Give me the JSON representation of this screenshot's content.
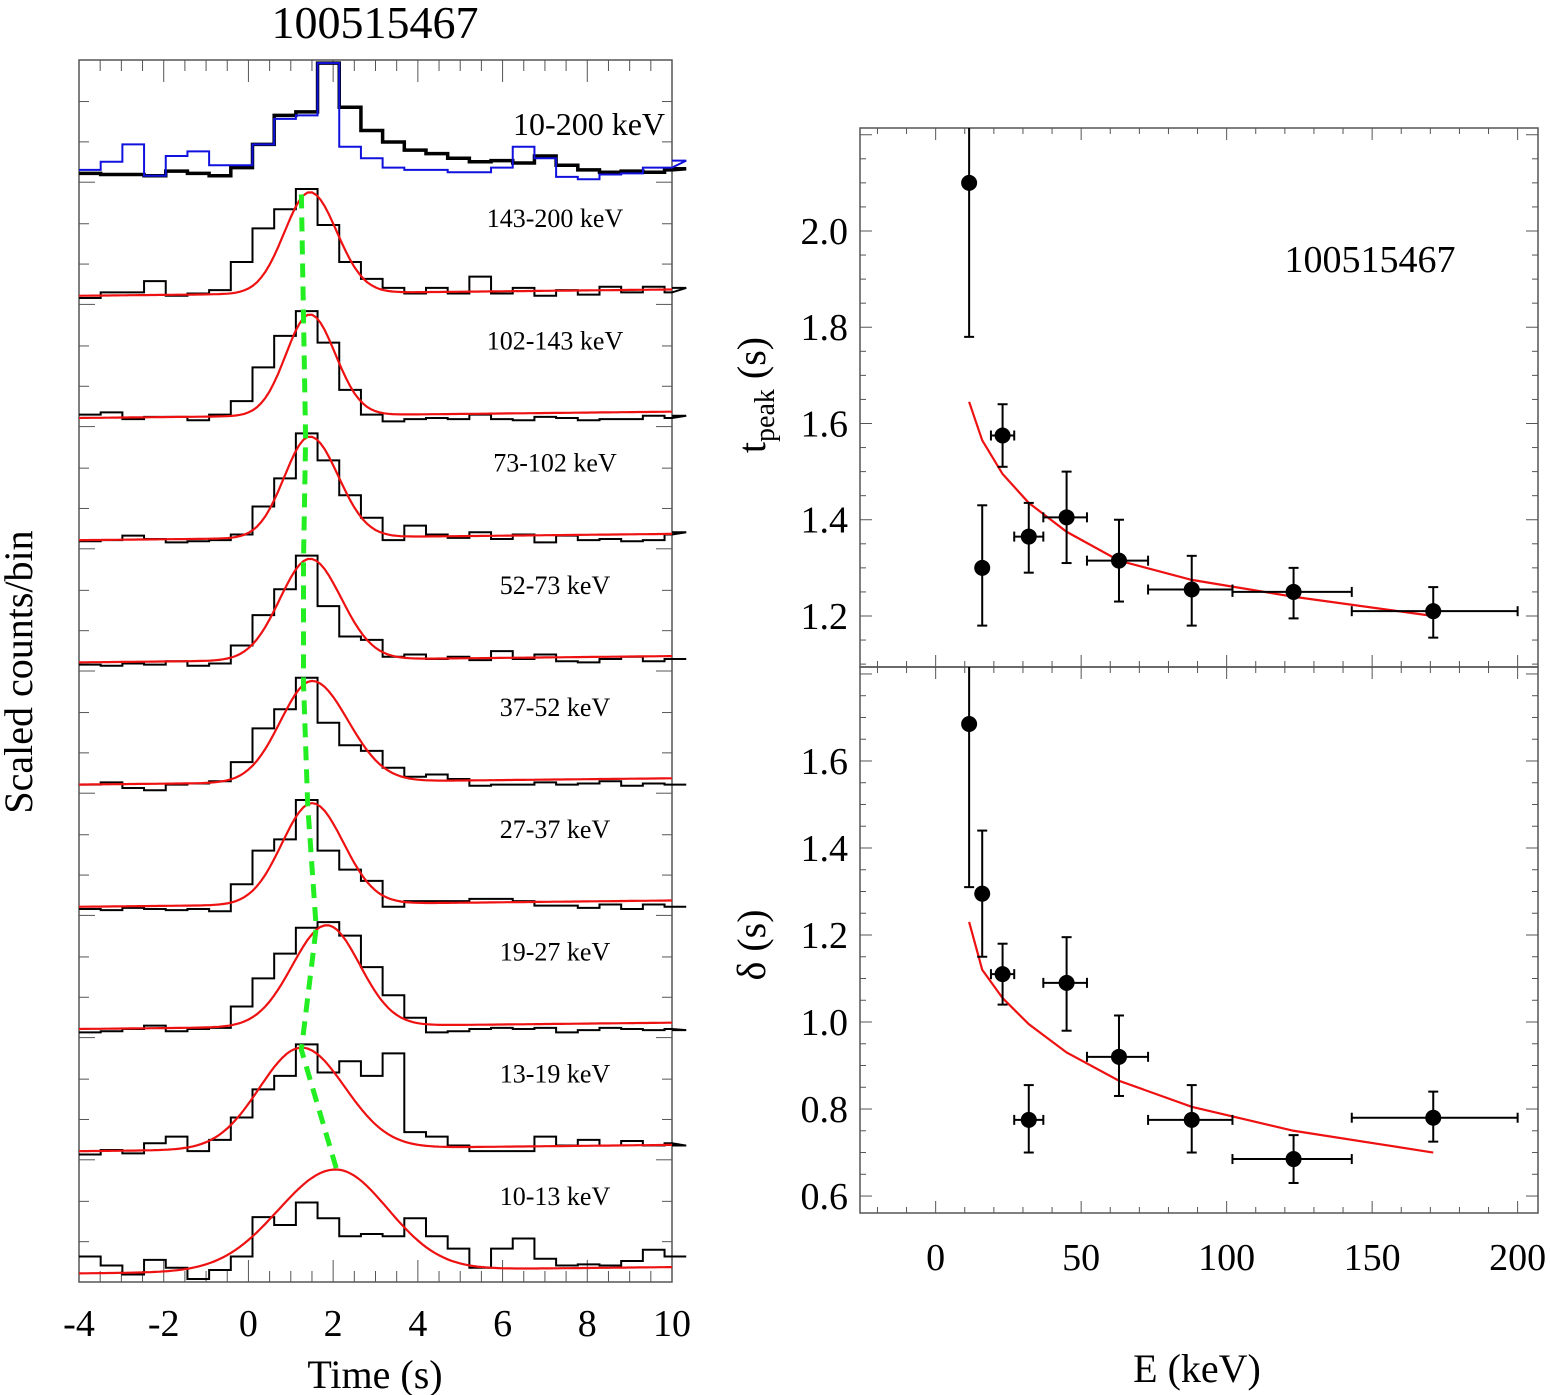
{
  "chart_data": [
    {
      "type": "line",
      "title": "100515467",
      "xlabel": "Time (s)",
      "ylabel": "Scaled counts/bin",
      "xlim": [
        -4,
        10
      ],
      "xticks": [
        "-4",
        "-2",
        "0",
        "2",
        "4",
        "6",
        "8",
        "10"
      ],
      "xtick_values": [
        -4,
        -2,
        0,
        2,
        4,
        6,
        8,
        10
      ],
      "bin_width_s": 0.512,
      "peak_line_color": "#22ee22",
      "fit_color": "#ee1111",
      "panels": [
        {
          "label": "10-200 keV",
          "counts": [
            0.05,
            0.04,
            0.04,
            0.03,
            0.07,
            0.05,
            0.03,
            0.1,
            0.3,
            0.55,
            0.58,
            1.0,
            0.62,
            0.42,
            0.32,
            0.25,
            0.22,
            0.18,
            0.15,
            0.16,
            0.14,
            0.2,
            0.12,
            0.08,
            0.06,
            0.07,
            0.06,
            0.08,
            0.09
          ],
          "overlay_counts": [
            0.08,
            0.15,
            0.3,
            0.03,
            0.2,
            0.24,
            0.12,
            0.12,
            0.3,
            0.52,
            0.55,
            1.0,
            0.28,
            0.18,
            0.1,
            0.08,
            0.08,
            0.06,
            0.06,
            0.1,
            0.28,
            0.18,
            0.02,
            0.0,
            0.04,
            0.05,
            0.1,
            0.1,
            0.16
          ],
          "overlay_color": "#1111dd",
          "fit": null
        },
        {
          "label": "143-200 keV",
          "fit_peak_t": 1.45,
          "fit_rise": 0.85,
          "fit_decay": 0.9,
          "counts": [
            0.03,
            0.08,
            0.08,
            0.18,
            0.05,
            0.07,
            0.1,
            0.35,
            0.65,
            0.82,
            1.0,
            0.68,
            0.35,
            0.2,
            0.12,
            0.07,
            0.12,
            0.07,
            0.22,
            0.07,
            0.12,
            0.05,
            0.1,
            0.06,
            0.13,
            0.08,
            0.13,
            0.08,
            0.12
          ]
        },
        {
          "label": "102-143 keV",
          "fit_peak_t": 1.45,
          "fit_rise": 0.8,
          "fit_decay": 0.85,
          "counts": [
            0.08,
            0.1,
            0.04,
            0.06,
            0.06,
            0.03,
            0.08,
            0.2,
            0.5,
            0.78,
            1.0,
            0.72,
            0.3,
            0.08,
            0.02,
            0.04,
            0.05,
            0.04,
            0.08,
            0.04,
            0.03,
            0.06,
            0.05,
            0.03,
            0.04,
            0.04,
            0.07,
            0.05,
            0.07
          ]
        },
        {
          "label": "73-102 keV",
          "fit_peak_t": 1.45,
          "fit_rise": 0.85,
          "fit_decay": 0.95,
          "counts": [
            0.04,
            0.05,
            0.09,
            0.06,
            0.03,
            0.04,
            0.05,
            0.1,
            0.35,
            0.6,
            1.0,
            0.76,
            0.45,
            0.25,
            0.05,
            0.18,
            0.1,
            0.07,
            0.12,
            0.06,
            0.1,
            0.03,
            0.09,
            0.05,
            0.06,
            0.04,
            0.05,
            0.1,
            0.12
          ]
        },
        {
          "label": "52-73 keV",
          "fit_peak_t": 1.45,
          "fit_rise": 1.0,
          "fit_decay": 1.05,
          "counts": [
            0.03,
            0.02,
            0.04,
            0.03,
            0.06,
            0.02,
            0.04,
            0.2,
            0.47,
            0.7,
            1.0,
            0.55,
            0.28,
            0.25,
            0.1,
            0.12,
            0.08,
            0.1,
            0.07,
            0.15,
            0.08,
            0.12,
            0.06,
            0.05,
            0.08,
            0.1,
            0.06,
            0.08,
            0.08
          ]
        },
        {
          "label": "37-52 keV",
          "fit_peak_t": 1.5,
          "fit_rise": 1.05,
          "fit_decay": 1.2,
          "counts": [
            0.05,
            0.07,
            0.02,
            0.0,
            0.05,
            0.06,
            0.08,
            0.25,
            0.55,
            0.72,
            1.0,
            0.6,
            0.4,
            0.35,
            0.2,
            0.12,
            0.14,
            0.1,
            0.04,
            0.05,
            0.05,
            0.07,
            0.05,
            0.06,
            0.08,
            0.04,
            0.06,
            0.05,
            0.05
          ]
        },
        {
          "label": "27-37 keV",
          "fit_peak_t": 1.5,
          "fit_rise": 1.0,
          "fit_decay": 1.05,
          "counts": [
            0.03,
            0.02,
            0.04,
            0.03,
            0.02,
            0.03,
            0.01,
            0.25,
            0.55,
            0.65,
            1.0,
            0.55,
            0.38,
            0.28,
            0.05,
            0.1,
            0.1,
            0.1,
            0.12,
            0.12,
            0.1,
            0.06,
            0.06,
            0.04,
            0.07,
            0.03,
            0.07,
            0.05,
            0.05
          ]
        },
        {
          "label": "19-27 keV",
          "fit_peak_t": 1.85,
          "fit_rise": 1.15,
          "fit_decay": 1.1,
          "counts": [
            0.02,
            0.03,
            0.05,
            0.08,
            0.03,
            0.05,
            0.06,
            0.25,
            0.5,
            0.72,
            0.95,
            1.0,
            0.88,
            0.6,
            0.35,
            0.15,
            0.02,
            0.03,
            0.05,
            0.06,
            0.05,
            0.06,
            0.02,
            0.04,
            0.06,
            0.05,
            0.04,
            0.05,
            0.04
          ]
        },
        {
          "label": "13-19 keV",
          "fit_peak_t": 1.25,
          "fit_rise": 1.4,
          "fit_decay": 1.45,
          "counts": [
            0.02,
            0.06,
            0.03,
            0.12,
            0.18,
            0.05,
            0.15,
            0.35,
            0.6,
            0.72,
            1.0,
            0.75,
            0.85,
            0.72,
            0.92,
            0.22,
            0.18,
            0.1,
            0.05,
            0.05,
            0.05,
            0.18,
            0.1,
            0.15,
            0.1,
            0.14,
            0.1,
            0.12,
            0.1
          ]
        },
        {
          "label": "10-13 keV",
          "fit_peak_t": 2.05,
          "fit_rise": 1.9,
          "fit_decay": 1.75,
          "counts": [
            0.2,
            0.12,
            0.04,
            0.17,
            0.1,
            0.0,
            0.08,
            0.2,
            0.55,
            0.48,
            0.68,
            0.54,
            0.38,
            0.4,
            0.38,
            0.54,
            0.38,
            0.27,
            0.1,
            0.27,
            0.36,
            0.18,
            0.12,
            0.13,
            0.12,
            0.16,
            0.26,
            0.2,
            0.2
          ]
        }
      ],
      "peak_line_times": [
        1.25,
        1.25,
        1.3,
        1.35,
        1.3,
        1.3,
        1.4,
        1.6,
        1.25,
        2.1
      ]
    },
    {
      "type": "scatter",
      "title": "100515467",
      "xlabel": "E (keV)",
      "xlim": [
        -26,
        207
      ],
      "xticks": [
        "0",
        "50",
        "100",
        "150",
        "200"
      ],
      "xtick_values": [
        0,
        50,
        100,
        150,
        200
      ],
      "panels": [
        {
          "ylabel": "t_peak (s)",
          "ylabel_main": "t",
          "ylabel_sub": "peak",
          "ylabel_unit": " (s)",
          "ylim": [
            1.094,
            2.214
          ],
          "yticks": [
            "1.2",
            "1.4",
            "1.6",
            "1.8",
            "2.0"
          ],
          "ytick_values": [
            1.2,
            1.4,
            1.6,
            1.8,
            2.0
          ],
          "points": [
            {
              "x": 11.5,
              "y": 2.1,
              "ylo": 1.78,
              "yhi": 2.42,
              "xlo": 11.5,
              "xhi": 11.5
            },
            {
              "x": 16,
              "y": 1.3,
              "ylo": 1.18,
              "yhi": 1.43,
              "xlo": 15,
              "xhi": 17
            },
            {
              "x": 23,
              "y": 1.575,
              "ylo": 1.51,
              "yhi": 1.64,
              "xlo": 19,
              "xhi": 27
            },
            {
              "x": 32,
              "y": 1.365,
              "ylo": 1.29,
              "yhi": 1.435,
              "xlo": 27,
              "xhi": 37
            },
            {
              "x": 45,
              "y": 1.405,
              "ylo": 1.31,
              "yhi": 1.5,
              "xlo": 37,
              "xhi": 52
            },
            {
              "x": 63,
              "y": 1.315,
              "ylo": 1.23,
              "yhi": 1.4,
              "xlo": 52,
              "xhi": 73
            },
            {
              "x": 88,
              "y": 1.255,
              "ylo": 1.18,
              "yhi": 1.325,
              "xlo": 73,
              "xhi": 102
            },
            {
              "x": 123,
              "y": 1.25,
              "ylo": 1.195,
              "yhi": 1.3,
              "xlo": 102,
              "xhi": 143
            },
            {
              "x": 171,
              "y": 1.21,
              "ylo": 1.155,
              "yhi": 1.26,
              "xlo": 143,
              "xhi": 200
            }
          ],
          "fit": {
            "x": [
              11.5,
              16,
              23,
              32,
              45,
              63,
              88,
              123,
              171
            ],
            "y": [
              1.645,
              1.565,
              1.495,
              1.435,
              1.375,
              1.315,
              1.275,
              1.24,
              1.2
            ]
          },
          "annotation": "100515467"
        },
        {
          "ylabel": "δ (s)",
          "ylim": [
            0.561,
            1.816
          ],
          "yticks": [
            "0.6",
            "0.8",
            "1.0",
            "1.2",
            "1.4",
            "1.6"
          ],
          "ytick_values": [
            0.6,
            0.8,
            1.0,
            1.2,
            1.4,
            1.6
          ],
          "points": [
            {
              "x": 11.5,
              "y": 1.685,
              "ylo": 1.31,
              "yhi": 2.0,
              "xlo": 11.5,
              "xhi": 11.5
            },
            {
              "x": 16,
              "y": 1.295,
              "ylo": 1.15,
              "yhi": 1.44,
              "xlo": 15,
              "xhi": 17
            },
            {
              "x": 23,
              "y": 1.11,
              "ylo": 1.04,
              "yhi": 1.18,
              "xlo": 19,
              "xhi": 27
            },
            {
              "x": 32,
              "y": 0.775,
              "ylo": 0.7,
              "yhi": 0.855,
              "xlo": 27,
              "xhi": 37
            },
            {
              "x": 45,
              "y": 1.09,
              "ylo": 0.98,
              "yhi": 1.195,
              "xlo": 37,
              "xhi": 52
            },
            {
              "x": 63,
              "y": 0.92,
              "ylo": 0.83,
              "yhi": 1.015,
              "xlo": 52,
              "xhi": 73
            },
            {
              "x": 88,
              "y": 0.775,
              "ylo": 0.7,
              "yhi": 0.855,
              "xlo": 73,
              "xhi": 102
            },
            {
              "x": 123,
              "y": 0.685,
              "ylo": 0.63,
              "yhi": 0.74,
              "xlo": 102,
              "xhi": 143
            },
            {
              "x": 171,
              "y": 0.78,
              "ylo": 0.725,
              "yhi": 0.84,
              "xlo": 143,
              "xhi": 200
            }
          ],
          "fit": {
            "x": [
              11.5,
              16,
              23,
              32,
              45,
              63,
              88,
              123,
              171
            ],
            "y": [
              1.23,
              1.12,
              1.055,
              0.995,
              0.93,
              0.865,
              0.805,
              0.75,
              0.7
            ]
          }
        }
      ]
    }
  ]
}
